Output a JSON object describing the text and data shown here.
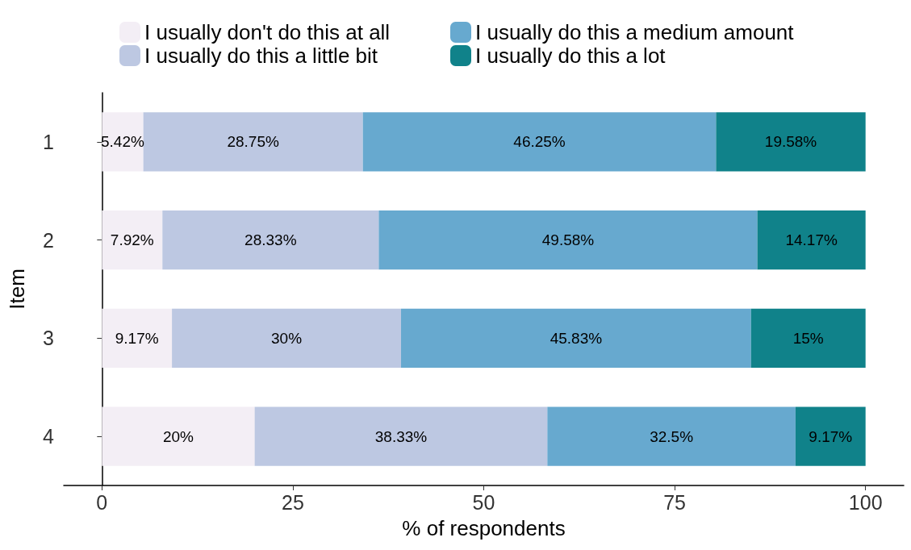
{
  "chart_data": {
    "type": "bar",
    "orientation": "horizontal",
    "stacked": true,
    "xlabel": "% of respondents",
    "ylabel": "Item",
    "categories": [
      "1",
      "2",
      "3",
      "4"
    ],
    "series": [
      {
        "name": "I usually don't do this at all",
        "color": "#f3eef5",
        "values": [
          5.42,
          7.92,
          9.17,
          20
        ],
        "value_labels": [
          "5.42%",
          "7.92%",
          "9.17%",
          "20%"
        ]
      },
      {
        "name": "I usually do this a little bit",
        "color": "#bdc8e2",
        "values": [
          28.75,
          28.33,
          30,
          38.33
        ],
        "value_labels": [
          "28.75%",
          "28.33%",
          "30%",
          "38.33%"
        ]
      },
      {
        "name": "I usually do this a medium amount",
        "color": "#67a9cf",
        "values": [
          46.25,
          49.58,
          45.83,
          32.5
        ],
        "value_labels": [
          "46.25%",
          "49.58%",
          "45.83%",
          "32.5%"
        ]
      },
      {
        "name": "I usually do this a lot",
        "color": "#10828a",
        "values": [
          19.58,
          14.17,
          15,
          9.17
        ],
        "value_labels": [
          "19.58%",
          "14.17%",
          "15%",
          "9.17%"
        ]
      }
    ],
    "xlim": [
      -5,
      105
    ],
    "xticks": [
      0,
      25,
      50,
      75,
      100
    ],
    "grid": false,
    "legend": "top"
  }
}
